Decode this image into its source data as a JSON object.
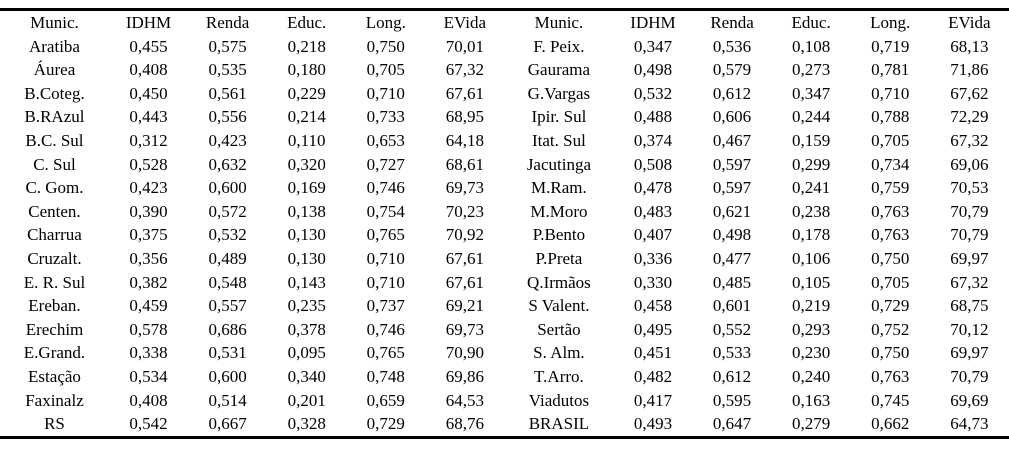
{
  "colors": {
    "text": "#000000",
    "background": "#ffffff",
    "rule": "#000000"
  },
  "table": {
    "header": [
      "Munic.",
      "IDHM",
      "Renda",
      "Educ.",
      "Long.",
      "EVida",
      "Munic.",
      "IDHM",
      "Renda",
      "Educ.",
      "Long.",
      "EVida"
    ],
    "rows": [
      [
        "Aratiba",
        "0,455",
        "0,575",
        "0,218",
        "0,750",
        "70,01",
        "F. Peix.",
        "0,347",
        "0,536",
        "0,108",
        "0,719",
        "68,13"
      ],
      [
        "Áurea",
        "0,408",
        "0,535",
        "0,180",
        "0,705",
        "67,32",
        "Gaurama",
        "0,498",
        "0,579",
        "0,273",
        "0,781",
        "71,86"
      ],
      [
        "B.Coteg.",
        "0,450",
        "0,561",
        "0,229",
        "0,710",
        "67,61",
        "G.Vargas",
        "0,532",
        "0,612",
        "0,347",
        "0,710",
        "67,62"
      ],
      [
        "B.RAzul",
        "0,443",
        "0,556",
        "0,214",
        "0,733",
        "68,95",
        "Ipir. Sul",
        "0,488",
        "0,606",
        "0,244",
        "0,788",
        "72,29"
      ],
      [
        "B.C. Sul",
        "0,312",
        "0,423",
        "0,110",
        "0,653",
        "64,18",
        "Itat. Sul",
        "0,374",
        "0,467",
        "0,159",
        "0,705",
        "67,32"
      ],
      [
        "C. Sul",
        "0,528",
        "0,632",
        "0,320",
        "0,727",
        "68,61",
        "Jacutinga",
        "0,508",
        "0,597",
        "0,299",
        "0,734",
        "69,06"
      ],
      [
        "C. Gom.",
        "0,423",
        "0,600",
        "0,169",
        "0,746",
        "69,73",
        "M.Ram.",
        "0,478",
        "0,597",
        "0,241",
        "0,759",
        "70,53"
      ],
      [
        "Centen.",
        "0,390",
        "0,572",
        "0,138",
        "0,754",
        "70,23",
        "M.Moro",
        "0,483",
        "0,621",
        "0,238",
        "0,763",
        "70,79"
      ],
      [
        "Charrua",
        "0,375",
        "0,532",
        "0,130",
        "0,765",
        "70,92",
        "P.Bento",
        "0,407",
        "0,498",
        "0,178",
        "0,763",
        "70,79"
      ],
      [
        "Cruzalt.",
        "0,356",
        "0,489",
        "0,130",
        "0,710",
        "67,61",
        "P.Preta",
        "0,336",
        "0,477",
        "0,106",
        "0,750",
        "69,97"
      ],
      [
        "E. R. Sul",
        "0,382",
        "0,548",
        "0,143",
        "0,710",
        "67,61",
        "Q.Irmãos",
        "0,330",
        "0,485",
        "0,105",
        "0,705",
        "67,32"
      ],
      [
        "Ereban.",
        "0,459",
        "0,557",
        "0,235",
        "0,737",
        "69,21",
        "S Valent.",
        "0,458",
        "0,601",
        "0,219",
        "0,729",
        "68,75"
      ],
      [
        "Erechim",
        "0,578",
        "0,686",
        "0,378",
        "0,746",
        "69,73",
        "Sertão",
        "0,495",
        "0,552",
        "0,293",
        "0,752",
        "70,12"
      ],
      [
        "E.Grand.",
        "0,338",
        "0,531",
        "0,095",
        "0,765",
        "70,90",
        "S. Alm.",
        "0,451",
        "0,533",
        "0,230",
        "0,750",
        "69,97"
      ],
      [
        "Estação",
        "0,534",
        "0,600",
        "0,340",
        "0,748",
        "69,86",
        "T.Arro.",
        "0,482",
        "0,612",
        "0,240",
        "0,763",
        "70,79"
      ],
      [
        "Faxinalz",
        "0,408",
        "0,514",
        "0,201",
        "0,659",
        "64,53",
        "Viadutos",
        "0,417",
        "0,595",
        "0,163",
        "0,745",
        "69,69"
      ],
      [
        "RS",
        "0,542",
        "0,667",
        "0,328",
        "0,729",
        "68,76",
        "BRASIL",
        "0,493",
        "0,647",
        "0,279",
        "0,662",
        "64,73"
      ]
    ]
  }
}
